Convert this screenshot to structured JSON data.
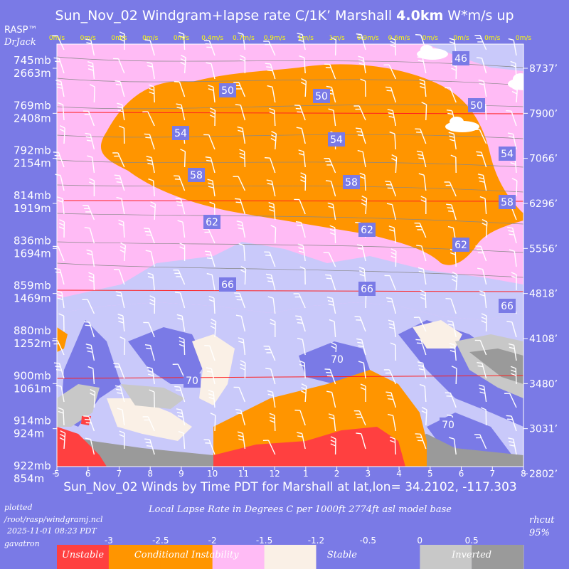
{
  "chart_data": {
    "type": "heatmap",
    "title_prefix": "Sun_Nov_02 Windgram+lapse rate C/1K’  Marshall ",
    "title_bold": "4.0km",
    "title_suffix": "  W*m/s up",
    "brand": "RASP™",
    "author": "DrJack",
    "wstar": [
      "0m/s",
      "0m/s",
      "0m/s",
      "0m/s",
      "0m/s",
      "0.4m/s",
      "0.7m/s",
      "0.9m/s",
      "1m/s",
      "1m/s",
      "0.9m/s",
      "0.6m/s",
      "0m/s",
      "0m/s",
      "0m/s",
      "0m/s"
    ],
    "x_ticks": [
      "5",
      "6",
      "7",
      "8",
      "9",
      "10",
      "11",
      "12",
      "1",
      "2",
      "3",
      "4",
      "5",
      "6",
      "7",
      "8"
    ],
    "levels_left": [
      {
        "mb": "745mb",
        "m": "2663m"
      },
      {
        "mb": "769mb",
        "m": "2408m"
      },
      {
        "mb": "792mb",
        "m": "2154m"
      },
      {
        "mb": "814mb",
        "m": "1919m"
      },
      {
        "mb": "836mb",
        "m": "1694m"
      },
      {
        "mb": "859mb",
        "m": "1469m"
      },
      {
        "mb": "880mb",
        "m": "1252m"
      },
      {
        "mb": "900mb",
        "m": "1061m"
      },
      {
        "mb": "914mb",
        "m": "924m"
      },
      {
        "mb": "922mb",
        "m": "854m"
      }
    ],
    "levels_right": [
      "8737’",
      "7900’",
      "7066’",
      "6296’",
      "5556’",
      "4818’",
      "4108’",
      "3480’",
      "3031’",
      "2802’"
    ],
    "contour_labels": [
      "46",
      "50",
      "50",
      "50",
      "54",
      "54",
      "54",
      "58",
      "58",
      "58",
      "62",
      "62",
      "62",
      "66",
      "66",
      "66",
      "70",
      "70",
      "70"
    ],
    "xlabel": "Sun_Nov_02 Winds by Time PDT for Marshall at lat,lon= 34.2102, -117.303",
    "plotted_label": "plotted",
    "script_path": "/root/rasp/windgramj.ncl",
    "plot_time": "2025-11-01 08:23 PDT",
    "host": "gavatron",
    "legend_title": "Local Lapse Rate in Degrees C per 1000ft  2774ft asl model base",
    "rhcut": "rhcut",
    "rh_pct": "95%",
    "legend_ticks": [
      "-3",
      "-2.5",
      "-2",
      "-1.5",
      "-1.2",
      "-0.5",
      "0",
      "0.5"
    ],
    "legend_categories": [
      "Unstable",
      "Conditional Instability",
      "Stable",
      "Inverted"
    ],
    "colors": {
      "background": "#7a7ae6",
      "unstable": "#ff4040",
      "conditional": "#ff9500",
      "pink": "#ffbbf5",
      "cream": "#faf0e6",
      "lavender": "#c9c9fa",
      "stable": "#7a7ae6",
      "light_gray": "#c8c8c8",
      "dark_gray": "#9a9a9a",
      "title": "#ffffff",
      "wstar_text": "#ffff00",
      "contour_box": "#7a7ae6"
    }
  }
}
